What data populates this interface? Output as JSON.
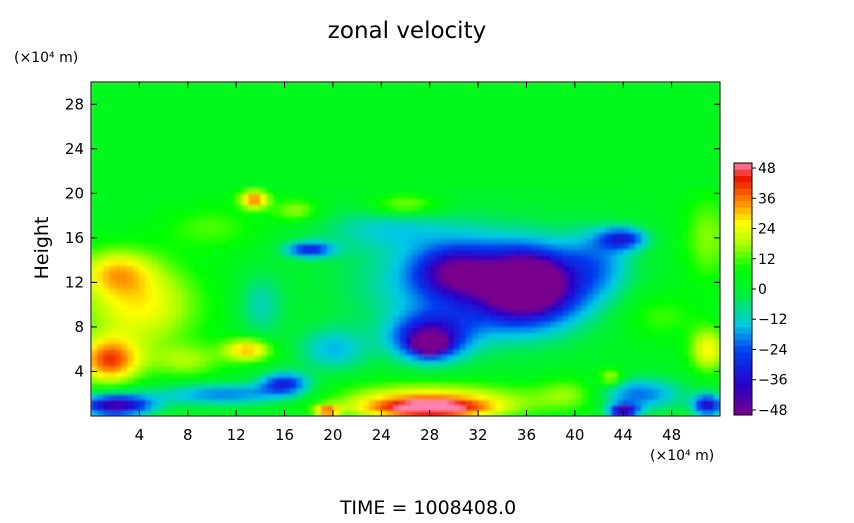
{
  "chart_data": {
    "type": "heatmap",
    "title": "zonal velocity",
    "footer": "TIME  =  1008408.0",
    "ylabel": "Height",
    "y_unit_label": "(×10⁴ m)",
    "x_unit_label": "(×10⁴ m)",
    "xlim": [
      0,
      52
    ],
    "ylim": [
      0,
      30
    ],
    "x_ticks": [
      4,
      8,
      12,
      16,
      20,
      24,
      28,
      32,
      36,
      40,
      44,
      48
    ],
    "y_ticks": [
      4,
      8,
      12,
      16,
      20,
      24,
      28
    ],
    "colorbar": {
      "range": [
        -50,
        50
      ],
      "ticks": [
        48,
        36,
        24,
        12,
        0,
        -12,
        -24,
        -36,
        -48
      ],
      "tick_labels": [
        "48",
        "36",
        "24",
        "12",
        "0",
        "−12",
        "−24",
        "−36",
        "−48"
      ]
    },
    "background_value": 3,
    "features": [
      {
        "x": 31,
        "y": 12,
        "value": -20,
        "rx": 9,
        "ry": 5
      },
      {
        "x": 36,
        "y": 11.5,
        "value": -36,
        "rx": 5,
        "ry": 3.5
      },
      {
        "x": 36,
        "y": 12,
        "value": -46,
        "rx": 2.5,
        "ry": 2
      },
      {
        "x": 28,
        "y": 7,
        "value": -38,
        "rx": 3,
        "ry": 2
      },
      {
        "x": 28,
        "y": 6.5,
        "value": -44,
        "rx": 1.2,
        "ry": 0.8
      },
      {
        "x": 30,
        "y": 13,
        "value": -26,
        "rx": 3,
        "ry": 2
      },
      {
        "x": 18,
        "y": 15,
        "value": -28,
        "rx": 2,
        "ry": 0.7
      },
      {
        "x": 2,
        "y": 1,
        "value": -44,
        "rx": 3,
        "ry": 1
      },
      {
        "x": 11,
        "y": 2,
        "value": -20,
        "rx": 6,
        "ry": 1
      },
      {
        "x": 16,
        "y": 3,
        "value": -28,
        "rx": 2,
        "ry": 1
      },
      {
        "x": 45,
        "y": 2,
        "value": -22,
        "rx": 4,
        "ry": 1.5
      },
      {
        "x": 44,
        "y": 0.5,
        "value": -40,
        "rx": 1.2,
        "ry": 0.6
      },
      {
        "x": 51,
        "y": 1,
        "value": -36,
        "rx": 1.2,
        "ry": 1
      },
      {
        "x": 44,
        "y": 16,
        "value": -26,
        "rx": 2,
        "ry": 1
      },
      {
        "x": 42,
        "y": 14,
        "value": -12,
        "rx": 3,
        "ry": 3
      },
      {
        "x": 20,
        "y": 6,
        "value": -14,
        "rx": 3,
        "ry": 2
      },
      {
        "x": 24,
        "y": 17,
        "value": -8,
        "rx": 6,
        "ry": 2
      },
      {
        "x": 14,
        "y": 10,
        "value": -10,
        "rx": 2,
        "ry": 3
      },
      {
        "x": 4,
        "y": 10,
        "value": 26,
        "rx": 5,
        "ry": 4
      },
      {
        "x": 2,
        "y": 13,
        "value": 22,
        "rx": 3,
        "ry": 2
      },
      {
        "x": 1.5,
        "y": 5,
        "value": 38,
        "rx": 2.5,
        "ry": 2
      },
      {
        "x": 8,
        "y": 5,
        "value": 16,
        "rx": 3,
        "ry": 1.5
      },
      {
        "x": 13,
        "y": 6,
        "value": 32,
        "rx": 2,
        "ry": 1
      },
      {
        "x": 13.5,
        "y": 19.5,
        "value": 36,
        "rx": 1.2,
        "ry": 0.8
      },
      {
        "x": 17,
        "y": 18.5,
        "value": 18,
        "rx": 2,
        "ry": 1
      },
      {
        "x": 26,
        "y": 19,
        "value": 20,
        "rx": 3,
        "ry": 1
      },
      {
        "x": 28,
        "y": 1.5,
        "value": 30,
        "rx": 8,
        "ry": 1.5
      },
      {
        "x": 28,
        "y": 0.7,
        "value": 40,
        "rx": 5,
        "ry": 0.8
      },
      {
        "x": 19.5,
        "y": 0.5,
        "value": 36,
        "rx": 1,
        "ry": 0.5
      },
      {
        "x": 40,
        "y": 2,
        "value": 18,
        "rx": 3,
        "ry": 1.5
      },
      {
        "x": 43,
        "y": 3.5,
        "value": 22,
        "rx": 1,
        "ry": 0.8
      },
      {
        "x": 51,
        "y": 6,
        "value": 26,
        "rx": 1.5,
        "ry": 2
      },
      {
        "x": 51,
        "y": 16,
        "value": 16,
        "rx": 2,
        "ry": 4
      },
      {
        "x": 47,
        "y": 9,
        "value": 12,
        "rx": 3,
        "ry": 2
      },
      {
        "x": 10,
        "y": 17,
        "value": 12,
        "rx": 4,
        "ry": 2
      }
    ]
  }
}
